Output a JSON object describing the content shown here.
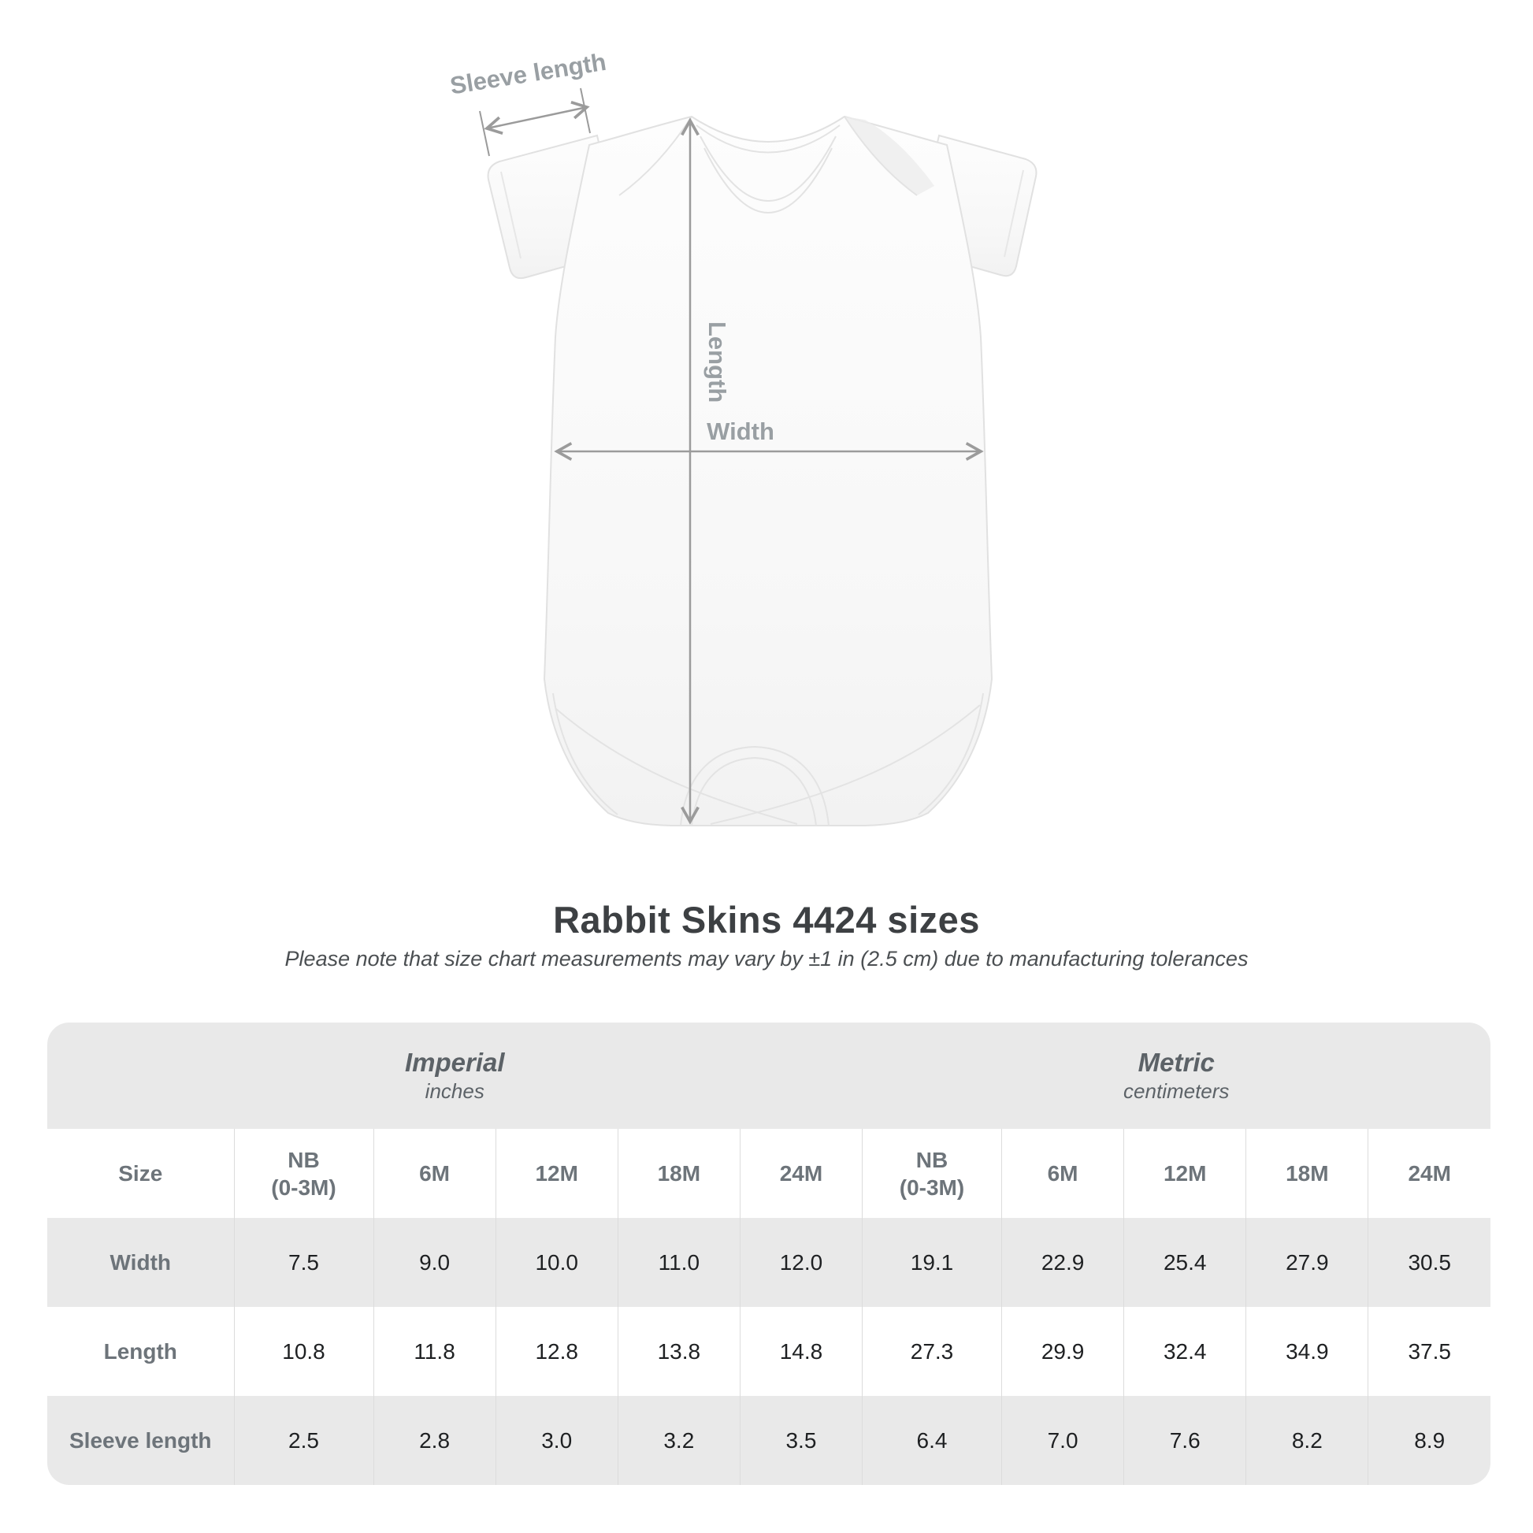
{
  "title": "Rabbit Skins 4424 sizes",
  "note": "Please note that size chart measurements may vary by ±1 in (2.5 cm) due to manufacturing tolerances",
  "figure": {
    "sleeve_length_label": "Sleeve length",
    "length_label": "Length",
    "width_label": "Width"
  },
  "colors": {
    "table_band_gray": "#e9e9e9",
    "separator_gray": "#dcdcdc",
    "label_gray": "#6d747a",
    "figure_annotation_gray": "#9b9b9b",
    "title_dark": "#3d4043",
    "value_dark": "#1e2022"
  },
  "chart_data": {
    "type": "table",
    "title": "Rabbit Skins 4424 sizes",
    "note": "Please note that size chart measurements may vary by ±1 in (2.5 cm) due to manufacturing tolerances",
    "size_header": "Size",
    "unit_groups": [
      {
        "label": "Imperial",
        "unit": "inches"
      },
      {
        "label": "Metric",
        "unit": "centimeters"
      }
    ],
    "sizes": [
      {
        "name": "NB",
        "sub": "(0-3M)"
      },
      {
        "name": "6M"
      },
      {
        "name": "12M"
      },
      {
        "name": "18M"
      },
      {
        "name": "24M"
      }
    ],
    "rows": [
      {
        "label": "Width",
        "imperial": [
          "7.5",
          "9.0",
          "10.0",
          "11.0",
          "12.0"
        ],
        "metric": [
          "19.1",
          "22.9",
          "25.4",
          "27.9",
          "30.5"
        ]
      },
      {
        "label": "Length",
        "imperial": [
          "10.8",
          "11.8",
          "12.8",
          "13.8",
          "14.8"
        ],
        "metric": [
          "27.3",
          "29.9",
          "32.4",
          "34.9",
          "37.5"
        ]
      },
      {
        "label": "Sleeve length",
        "imperial": [
          "2.5",
          "2.8",
          "3.0",
          "3.2",
          "3.5"
        ],
        "metric": [
          "6.4",
          "7.0",
          "7.6",
          "8.2",
          "8.9"
        ]
      }
    ]
  }
}
